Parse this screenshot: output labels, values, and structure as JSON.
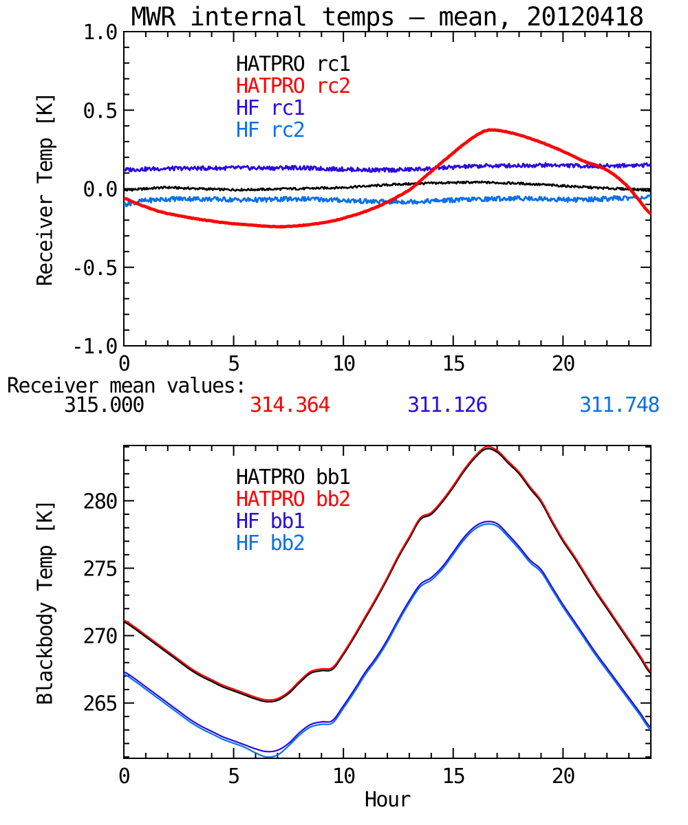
{
  "title": "MWR internal temps – mean, 20120418",
  "mean_values": {
    "label": "Receiver mean values:",
    "items": [
      {
        "text": "315.000",
        "color": "#000000"
      },
      {
        "text": "314.364",
        "color": "#FF0000"
      },
      {
        "text": "311.126",
        "color": "#2B0BE0"
      },
      {
        "text": "311.748",
        "color": "#0C70E8"
      }
    ]
  },
  "chart_data": [
    {
      "type": "line",
      "panel": "receiver",
      "title": "",
      "xlabel": "",
      "ylabel": "Receiver Temp [K]",
      "xlim": [
        0,
        24
      ],
      "ylim": [
        -1.0,
        1.0
      ],
      "grid": false,
      "legend_position": "upper-left-inside",
      "xticks": {
        "minor_step": 1,
        "major": [
          {
            "value": 0,
            "label": "0"
          },
          {
            "value": 5,
            "label": "5"
          },
          {
            "value": 10,
            "label": "10"
          },
          {
            "value": 15,
            "label": "15"
          },
          {
            "value": 20,
            "label": "20"
          }
        ]
      },
      "yticks": {
        "minor_step": 0.1,
        "major": [
          {
            "value": 1.0,
            "label": "1.0"
          },
          {
            "value": 0.5,
            "label": "0.5"
          },
          {
            "value": 0.0,
            "label": "0.0"
          },
          {
            "value": -0.5,
            "label": "-0.5"
          },
          {
            "value": -1.0,
            "label": "-1.0"
          }
        ]
      },
      "x_start": 0,
      "x_step": 0.5,
      "draw_order": [
        2,
        3,
        0,
        1
      ],
      "series": [
        {
          "name": "HATPRO rc1",
          "color": "#000000",
          "width": 2.6,
          "noise": 0.007,
          "values": [
            -0.01,
            -0.005,
            0.0,
            0.005,
            0.008,
            0.005,
            0.002,
            0.0,
            -0.003,
            -0.005,
            -0.006,
            -0.006,
            -0.005,
            -0.004,
            -0.002,
            0.0,
            0.0,
            0.002,
            0.004,
            0.006,
            0.008,
            0.012,
            0.016,
            0.02,
            0.024,
            0.028,
            0.03,
            0.033,
            0.035,
            0.037,
            0.038,
            0.04,
            0.04,
            0.04,
            0.038,
            0.036,
            0.034,
            0.03,
            0.026,
            0.022,
            0.018,
            0.014,
            0.01,
            0.006,
            0.003,
            0.0,
            -0.003,
            -0.006,
            -0.01
          ]
        },
        {
          "name": "HATPRO rc2",
          "color": "#FF0000",
          "width": 4.6,
          "noise": 0.002,
          "values": [
            -0.06,
            -0.09,
            -0.115,
            -0.14,
            -0.158,
            -0.172,
            -0.185,
            -0.196,
            -0.206,
            -0.215,
            -0.222,
            -0.228,
            -0.234,
            -0.239,
            -0.242,
            -0.24,
            -0.235,
            -0.228,
            -0.218,
            -0.205,
            -0.188,
            -0.168,
            -0.145,
            -0.118,
            -0.085,
            -0.048,
            -0.008,
            0.05,
            0.11,
            0.17,
            0.228,
            0.285,
            0.335,
            0.37,
            0.372,
            0.36,
            0.342,
            0.32,
            0.295,
            0.268,
            0.238,
            0.205,
            0.172,
            0.15,
            0.118,
            0.07,
            0.005,
            -0.08,
            -0.16
          ]
        },
        {
          "name": "HF rc1",
          "color": "#2B0BE0",
          "width": 2.8,
          "noise": 0.013,
          "values": [
            0.12,
            0.123,
            0.125,
            0.127,
            0.128,
            0.129,
            0.13,
            0.13,
            0.131,
            0.131,
            0.132,
            0.132,
            0.131,
            0.131,
            0.132,
            0.135,
            0.133,
            0.13,
            0.128,
            0.126,
            0.124,
            0.122,
            0.12,
            0.119,
            0.119,
            0.12,
            0.122,
            0.125,
            0.129,
            0.133,
            0.137,
            0.14,
            0.143,
            0.145,
            0.146,
            0.147,
            0.148,
            0.149,
            0.15,
            0.15,
            0.149,
            0.147,
            0.145,
            0.144,
            0.145,
            0.147,
            0.149,
            0.15,
            0.15
          ]
        },
        {
          "name": "HF rc2",
          "color": "#0C70E8",
          "width": 2.8,
          "noise": 0.015,
          "values": [
            -0.1,
            -0.085,
            -0.076,
            -0.07,
            -0.066,
            -0.064,
            -0.064,
            -0.065,
            -0.066,
            -0.068,
            -0.07,
            -0.071,
            -0.071,
            -0.07,
            -0.068,
            -0.066,
            -0.065,
            -0.066,
            -0.068,
            -0.071,
            -0.074,
            -0.077,
            -0.08,
            -0.082,
            -0.083,
            -0.083,
            -0.082,
            -0.08,
            -0.078,
            -0.075,
            -0.072,
            -0.07,
            -0.068,
            -0.066,
            -0.064,
            -0.062,
            -0.061,
            -0.062,
            -0.064,
            -0.067,
            -0.069,
            -0.07,
            -0.069,
            -0.067,
            -0.064,
            -0.061,
            -0.058,
            -0.056,
            -0.055
          ]
        }
      ]
    },
    {
      "type": "line",
      "panel": "blackbody",
      "title": "",
      "xlabel": "Hour",
      "ylabel": "Blackbody Temp [K]",
      "xlim": [
        0,
        24
      ],
      "ylim": [
        260.9,
        284.1
      ],
      "grid": false,
      "legend_position": "upper-left-inside",
      "xticks": {
        "minor_step": 1,
        "major": [
          {
            "value": 0,
            "label": "0"
          },
          {
            "value": 5,
            "label": "5"
          },
          {
            "value": 10,
            "label": "10"
          },
          {
            "value": 15,
            "label": "15"
          },
          {
            "value": 20,
            "label": "20"
          }
        ]
      },
      "yticks": {
        "minor_step": 1,
        "major": [
          {
            "value": 280,
            "label": "280"
          },
          {
            "value": 275,
            "label": "275"
          },
          {
            "value": 270,
            "label": "270"
          },
          {
            "value": 265,
            "label": "265"
          }
        ]
      },
      "x_start": 0,
      "x_step": 0.5,
      "draw_order": [
        0,
        1,
        2,
        3
      ],
      "series": [
        {
          "name": "HATPRO bb1",
          "color": "#000000",
          "width": 2.2,
          "noise": 0,
          "values": [
            271.0,
            270.5,
            269.9,
            269.3,
            268.7,
            268.1,
            267.5,
            267.0,
            266.6,
            266.2,
            265.9,
            265.6,
            265.3,
            265.1,
            265.2,
            265.7,
            266.5,
            267.2,
            267.4,
            267.5,
            268.6,
            269.9,
            271.3,
            272.7,
            274.2,
            275.8,
            277.2,
            278.6,
            279.0,
            279.9,
            281.0,
            282.2,
            283.2,
            283.85,
            283.6,
            282.8,
            282.0,
            280.9,
            279.9,
            278.4,
            277.0,
            275.8,
            274.5,
            273.2,
            272.0,
            270.8,
            269.6,
            268.4,
            267.2
          ]
        },
        {
          "name": "HATPRO bb2",
          "color": "#FF0000",
          "width": 2.2,
          "noise": 0,
          "values": [
            271.13,
            270.63,
            270.03,
            269.43,
            268.83,
            268.23,
            267.63,
            267.13,
            266.73,
            266.33,
            266.03,
            265.73,
            265.43,
            265.23,
            265.33,
            265.83,
            266.63,
            267.33,
            267.53,
            267.63,
            268.73,
            270.03,
            271.43,
            272.83,
            274.33,
            275.93,
            277.33,
            278.73,
            279.13,
            280.03,
            281.13,
            282.33,
            283.33,
            284.0,
            283.73,
            282.93,
            282.13,
            281.03,
            280.03,
            278.53,
            277.13,
            275.93,
            274.63,
            273.33,
            272.13,
            270.93,
            269.73,
            268.53,
            267.33
          ]
        },
        {
          "name": "HF bb1",
          "color": "#2B0BE0",
          "width": 2.2,
          "noise": 0,
          "values": [
            267.3,
            266.8,
            266.2,
            265.6,
            265.0,
            264.4,
            263.8,
            263.3,
            262.9,
            262.5,
            262.2,
            261.9,
            261.6,
            261.4,
            261.5,
            262.0,
            262.8,
            263.4,
            263.6,
            263.7,
            264.8,
            266.0,
            267.3,
            268.4,
            269.7,
            271.2,
            272.6,
            273.8,
            274.3,
            275.1,
            276.2,
            277.3,
            278.1,
            278.45,
            278.3,
            277.5,
            276.6,
            275.6,
            274.9,
            273.6,
            272.3,
            271.1,
            269.9,
            268.7,
            267.6,
            266.5,
            265.4,
            264.3,
            263.2
          ]
        },
        {
          "name": "HF bb2",
          "color": "#0C70E8",
          "width": 2.2,
          "noise": 0,
          "values": [
            267.12,
            266.62,
            266.02,
            265.42,
            264.82,
            264.22,
            263.62,
            263.12,
            262.72,
            262.32,
            262.02,
            261.72,
            261.3,
            261.0,
            261.15,
            261.82,
            262.62,
            263.22,
            263.42,
            263.52,
            264.62,
            265.82,
            267.12,
            268.22,
            269.52,
            271.02,
            272.42,
            273.62,
            274.12,
            274.92,
            276.02,
            277.12,
            277.92,
            278.27,
            278.12,
            277.32,
            276.42,
            275.42,
            274.72,
            273.42,
            272.12,
            270.92,
            269.72,
            268.52,
            267.42,
            266.32,
            265.22,
            264.12,
            263.02
          ]
        }
      ]
    }
  ]
}
